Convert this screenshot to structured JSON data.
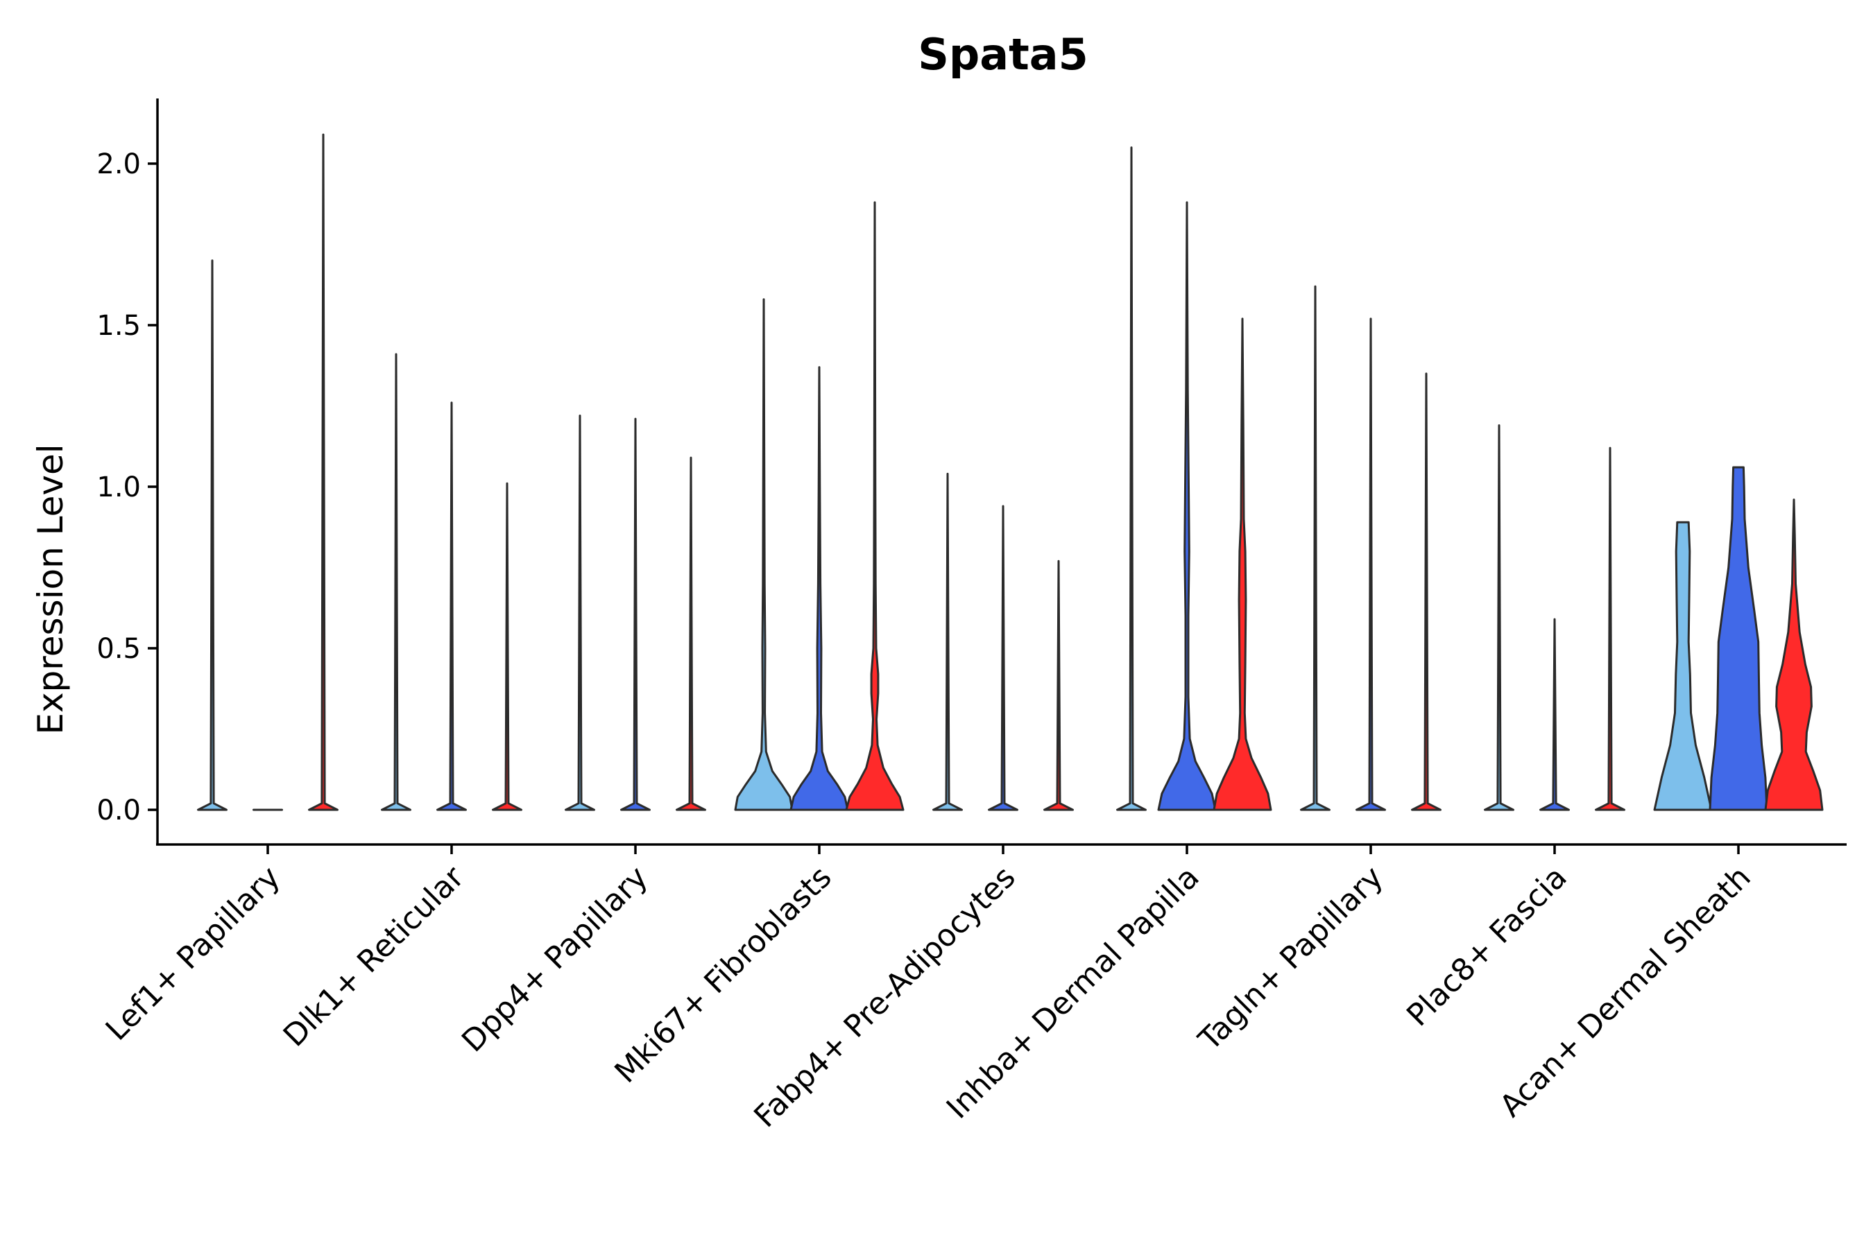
{
  "chart_data": {
    "type": "violin",
    "title": "Spata5",
    "xlabel": "",
    "ylabel": "Expression Level",
    "ylim": [
      -0.11,
      2.2
    ],
    "yticks": [
      "0.0",
      "0.5",
      "1.0",
      "1.5",
      "2.0"
    ],
    "ytick_values": [
      0,
      0.5,
      1.0,
      1.5,
      2.0
    ],
    "grid": false,
    "legend": "none",
    "group_colors": {
      "group1": "#7dbfeb",
      "group2": "#4169e8",
      "group3": "#ff2a2a"
    },
    "categories": [
      "Lef1+ Papillary",
      "Dlk1+ Reticular",
      "Dpp4+ Papillary",
      "Mki67+ Fibroblasts",
      "Fabp4+ Pre-Adipocytes",
      "Inhba+ Dermal Papilla",
      "Tagln+ Papillary",
      "Plac8+ Fascia",
      "Acan+ Dermal Sheath"
    ],
    "violins": [
      {
        "category": "Lef1+ Papillary",
        "group": "group1",
        "max": 1.7,
        "shape": [
          [
            0,
            0.5
          ],
          [
            0.02,
            0.05
          ],
          [
            1.7,
            0
          ]
        ]
      },
      {
        "category": "Lef1+ Papillary",
        "group": "group2",
        "max": 0.0,
        "shape": [
          [
            0,
            0.5
          ]
        ]
      },
      {
        "category": "Lef1+ Papillary",
        "group": "group3",
        "max": 2.09,
        "shape": [
          [
            0,
            0.5
          ],
          [
            0.02,
            0.05
          ],
          [
            2.09,
            0
          ]
        ]
      },
      {
        "category": "Dlk1+ Reticular",
        "group": "group1",
        "max": 1.41,
        "shape": [
          [
            0,
            0.5
          ],
          [
            0.02,
            0.05
          ],
          [
            1.41,
            0
          ]
        ]
      },
      {
        "category": "Dlk1+ Reticular",
        "group": "group2",
        "max": 1.26,
        "shape": [
          [
            0,
            0.5
          ],
          [
            0.02,
            0.05
          ],
          [
            1.26,
            0
          ]
        ]
      },
      {
        "category": "Dlk1+ Reticular",
        "group": "group3",
        "max": 1.01,
        "shape": [
          [
            0,
            0.5
          ],
          [
            0.02,
            0.05
          ],
          [
            1.01,
            0
          ]
        ]
      },
      {
        "category": "Dpp4+ Papillary",
        "group": "group1",
        "max": 1.22,
        "shape": [
          [
            0,
            0.5
          ],
          [
            0.02,
            0.05
          ],
          [
            1.22,
            0
          ]
        ]
      },
      {
        "category": "Dpp4+ Papillary",
        "group": "group2",
        "max": 1.21,
        "shape": [
          [
            0,
            0.5
          ],
          [
            0.02,
            0.05
          ],
          [
            1.21,
            0
          ]
        ]
      },
      {
        "category": "Dpp4+ Papillary",
        "group": "group3",
        "max": 1.09,
        "shape": [
          [
            0,
            0.5
          ],
          [
            0.02,
            0.05
          ],
          [
            1.09,
            0
          ]
        ]
      },
      {
        "category": "Mki67+ Fibroblasts",
        "group": "group1",
        "max": 1.58,
        "shape": [
          [
            0,
            1.0
          ],
          [
            0.04,
            0.92
          ],
          [
            0.08,
            0.62
          ],
          [
            0.12,
            0.3
          ],
          [
            0.18,
            0.08
          ],
          [
            0.3,
            0.04
          ],
          [
            0.5,
            0.05
          ],
          [
            0.7,
            0.03
          ],
          [
            1.0,
            0.02
          ],
          [
            1.58,
            0
          ]
        ]
      },
      {
        "category": "Mki67+ Fibroblasts",
        "group": "group2",
        "max": 1.37,
        "shape": [
          [
            0,
            1.0
          ],
          [
            0.04,
            0.9
          ],
          [
            0.08,
            0.62
          ],
          [
            0.12,
            0.3
          ],
          [
            0.18,
            0.1
          ],
          [
            0.3,
            0.06
          ],
          [
            0.5,
            0.07
          ],
          [
            0.7,
            0.04
          ],
          [
            1.0,
            0.02
          ],
          [
            1.37,
            0
          ]
        ]
      },
      {
        "category": "Mki67+ Fibroblasts",
        "group": "group3",
        "max": 1.88,
        "shape": [
          [
            0,
            1.0
          ],
          [
            0.04,
            0.88
          ],
          [
            0.08,
            0.6
          ],
          [
            0.13,
            0.3
          ],
          [
            0.2,
            0.1
          ],
          [
            0.28,
            0.06
          ],
          [
            0.36,
            0.12
          ],
          [
            0.42,
            0.12
          ],
          [
            0.5,
            0.05
          ],
          [
            0.7,
            0.03
          ],
          [
            1.0,
            0.02
          ],
          [
            1.88,
            0
          ]
        ]
      },
      {
        "category": "Fabp4+ Pre-Adipocytes",
        "group": "group1",
        "max": 1.04,
        "shape": [
          [
            0,
            0.5
          ],
          [
            0.02,
            0.05
          ],
          [
            1.04,
            0
          ]
        ]
      },
      {
        "category": "Fabp4+ Pre-Adipocytes",
        "group": "group2",
        "max": 0.94,
        "shape": [
          [
            0,
            0.5
          ],
          [
            0.02,
            0.05
          ],
          [
            0.94,
            0
          ]
        ]
      },
      {
        "category": "Fabp4+ Pre-Adipocytes",
        "group": "group3",
        "max": 0.77,
        "shape": [
          [
            0,
            0.5
          ],
          [
            0.02,
            0.05
          ],
          [
            0.77,
            0
          ]
        ]
      },
      {
        "category": "Inhba+ Dermal Papilla",
        "group": "group1",
        "max": 2.05,
        "shape": [
          [
            0,
            0.5
          ],
          [
            0.02,
            0.05
          ],
          [
            2.05,
            0
          ]
        ]
      },
      {
        "category": "Inhba+ Dermal Papilla",
        "group": "group2",
        "max": 1.88,
        "shape": [
          [
            0,
            1.0
          ],
          [
            0.05,
            0.88
          ],
          [
            0.1,
            0.6
          ],
          [
            0.15,
            0.3
          ],
          [
            0.22,
            0.1
          ],
          [
            0.35,
            0.05
          ],
          [
            0.6,
            0.05
          ],
          [
            0.8,
            0.08
          ],
          [
            1.0,
            0.06
          ],
          [
            1.3,
            0.03
          ],
          [
            1.88,
            0
          ]
        ]
      },
      {
        "category": "Inhba+ Dermal Papilla",
        "group": "group3",
        "max": 1.52,
        "shape": [
          [
            0,
            1.0
          ],
          [
            0.05,
            0.9
          ],
          [
            0.1,
            0.65
          ],
          [
            0.16,
            0.32
          ],
          [
            0.22,
            0.12
          ],
          [
            0.3,
            0.08
          ],
          [
            0.45,
            0.1
          ],
          [
            0.65,
            0.12
          ],
          [
            0.8,
            0.1
          ],
          [
            0.9,
            0.05
          ],
          [
            1.2,
            0.03
          ],
          [
            1.52,
            0
          ]
        ]
      },
      {
        "category": "Tagln+ Papillary",
        "group": "group1",
        "max": 1.62,
        "shape": [
          [
            0,
            0.5
          ],
          [
            0.02,
            0.05
          ],
          [
            1.62,
            0
          ]
        ]
      },
      {
        "category": "Tagln+ Papillary",
        "group": "group2",
        "max": 1.52,
        "shape": [
          [
            0,
            0.5
          ],
          [
            0.02,
            0.05
          ],
          [
            1.52,
            0
          ]
        ]
      },
      {
        "category": "Tagln+ Papillary",
        "group": "group3",
        "max": 1.35,
        "shape": [
          [
            0,
            0.5
          ],
          [
            0.02,
            0.05
          ],
          [
            1.35,
            0
          ]
        ]
      },
      {
        "category": "Plac8+ Fascia",
        "group": "group1",
        "max": 1.19,
        "shape": [
          [
            0,
            0.5
          ],
          [
            0.02,
            0.05
          ],
          [
            1.19,
            0
          ]
        ]
      },
      {
        "category": "Plac8+ Fascia",
        "group": "group2",
        "max": 0.59,
        "shape": [
          [
            0,
            0.5
          ],
          [
            0.02,
            0.05
          ],
          [
            0.59,
            0
          ]
        ]
      },
      {
        "category": "Plac8+ Fascia",
        "group": "group3",
        "max": 1.12,
        "shape": [
          [
            0,
            0.5
          ],
          [
            0.02,
            0.05
          ],
          [
            1.12,
            0
          ]
        ]
      },
      {
        "category": "Acan+ Dermal Sheath",
        "group": "group1",
        "max": 0.89,
        "shape": [
          [
            0,
            1.0
          ],
          [
            0.1,
            0.75
          ],
          [
            0.2,
            0.45
          ],
          [
            0.3,
            0.28
          ],
          [
            0.42,
            0.25
          ],
          [
            0.52,
            0.2
          ],
          [
            0.65,
            0.22
          ],
          [
            0.8,
            0.24
          ],
          [
            0.89,
            0.2
          ]
        ]
      },
      {
        "category": "Acan+ Dermal Sheath",
        "group": "group2",
        "max": 1.06,
        "shape": [
          [
            0,
            1.0
          ],
          [
            0.1,
            0.95
          ],
          [
            0.2,
            0.82
          ],
          [
            0.3,
            0.74
          ],
          [
            0.4,
            0.72
          ],
          [
            0.52,
            0.7
          ],
          [
            0.62,
            0.55
          ],
          [
            0.75,
            0.35
          ],
          [
            0.9,
            0.22
          ],
          [
            1.0,
            0.2
          ],
          [
            1.06,
            0.18
          ]
        ]
      },
      {
        "category": "Acan+ Dermal Sheath",
        "group": "group3",
        "max": 0.96,
        "shape": [
          [
            0,
            1.0
          ],
          [
            0.06,
            0.92
          ],
          [
            0.12,
            0.68
          ],
          [
            0.18,
            0.42
          ],
          [
            0.24,
            0.45
          ],
          [
            0.32,
            0.62
          ],
          [
            0.38,
            0.6
          ],
          [
            0.45,
            0.4
          ],
          [
            0.55,
            0.2
          ],
          [
            0.7,
            0.06
          ],
          [
            0.85,
            0.03
          ],
          [
            0.96,
            0
          ]
        ]
      }
    ]
  }
}
